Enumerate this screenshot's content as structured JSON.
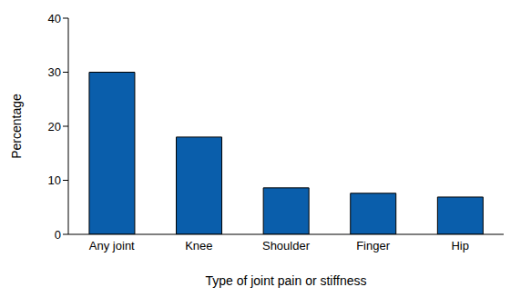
{
  "chart_data": {
    "type": "bar",
    "categories": [
      "Any joint",
      "Knee",
      "Shoulder",
      "Finger",
      "Hip"
    ],
    "values": [
      30,
      18,
      8.6,
      7.6,
      6.9
    ],
    "color": "#0a5eab",
    "xlabel": "Type of joint pain or stiffness",
    "ylabel": "Percentage",
    "ylim": [
      0,
      40
    ],
    "yticks": [
      0,
      10,
      20,
      30,
      40
    ],
    "grid": false
  }
}
